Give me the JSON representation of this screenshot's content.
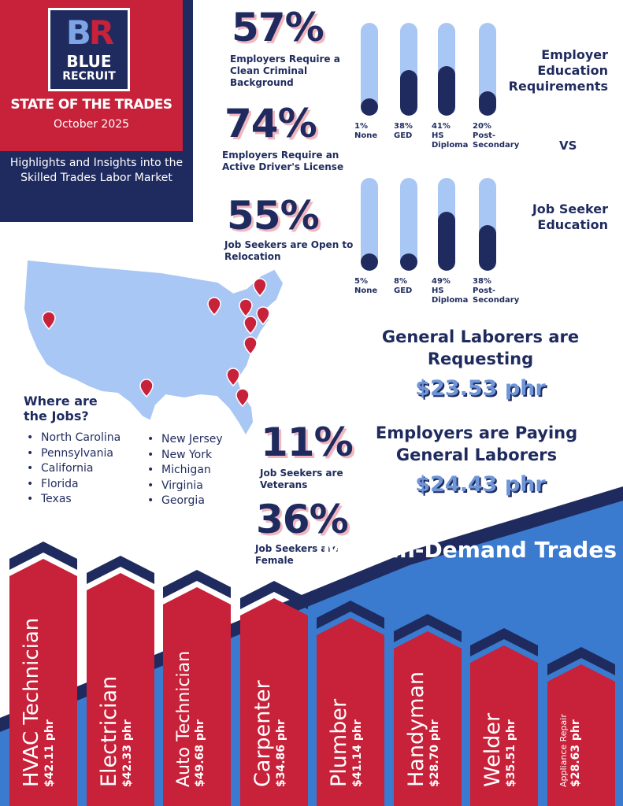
{
  "brand": {
    "logo_letters_b": "B",
    "logo_letters_r": "R",
    "logo_word1": "BLUE",
    "logo_word2": "RECRUIT",
    "title": "STATE OF THE TRADES",
    "date": "October 2025",
    "subtitle": "Highlights and Insights into the Skilled Trades Labor Market",
    "colors": {
      "navy": "#1f2b5e",
      "red": "#c8213a",
      "light_blue": "#a9c7f4",
      "blue": "#3a7bd0"
    }
  },
  "stats": [
    {
      "value": "57%",
      "label": "Employers Require a Clean Criminal Background"
    },
    {
      "value": "74%",
      "label": "Employers Require an Active Driver's License"
    },
    {
      "value": "55%",
      "label": "Job Seekers are Open to Relocation"
    },
    {
      "value": "11%",
      "label": "Job Seekers are Veterans"
    },
    {
      "value": "36%",
      "label": "Job Seekers are Female"
    }
  ],
  "vs_label": "VS",
  "chart_data": [
    {
      "type": "bar",
      "title": "Employer Education Requirements",
      "categories": [
        "None",
        "GED",
        "HS Diploma",
        "Post-Secondary"
      ],
      "values": [
        1,
        38,
        41,
        20
      ],
      "value_labels": [
        "1%",
        "38%",
        "41%",
        "20%"
      ],
      "ylim": [
        0,
        100
      ]
    },
    {
      "type": "bar",
      "title": "Job Seeker Education",
      "categories": [
        "None",
        "GED",
        "HS Diploma",
        "Post-Secondary"
      ],
      "values": [
        5,
        8,
        49,
        38
      ],
      "value_labels": [
        "5%",
        "8%",
        "49%",
        "38%"
      ],
      "ylim": [
        0,
        100
      ]
    },
    {
      "type": "bar",
      "title": "Most In-Demand Trades",
      "categories": [
        "HVAC Technician",
        "Electrician",
        "Auto Technician",
        "Carpenter",
        "Plumber",
        "Handyman",
        "Welder",
        "Appliance Repair"
      ],
      "values": [
        42.11,
        42.33,
        49.68,
        34.86,
        41.14,
        28.7,
        35.51,
        28.63
      ],
      "value_labels": [
        "$42.11 phr",
        "$42.33 phr",
        "$49.68 phr",
        "$34.86 phr",
        "$41.14 phr",
        "$28.70 phr",
        "$35.51 phr",
        "$28.63 phr"
      ]
    }
  ],
  "jobs": {
    "title": "Where are the Jobs?",
    "col1": [
      "North Carolina",
      "Pennsylvania",
      "California",
      "Florida",
      "Texas"
    ],
    "col2": [
      "New Jersey",
      "New York",
      "Michigan",
      "Virginia",
      "Georgia"
    ],
    "map_icon": "map-pin-icon"
  },
  "wages": {
    "requesting_head": "General Laborers are Requesting",
    "requesting_value": "$23.53 phr",
    "paying_head": "Employers are Paying General Laborers",
    "paying_value": "$24.43 phr"
  }
}
